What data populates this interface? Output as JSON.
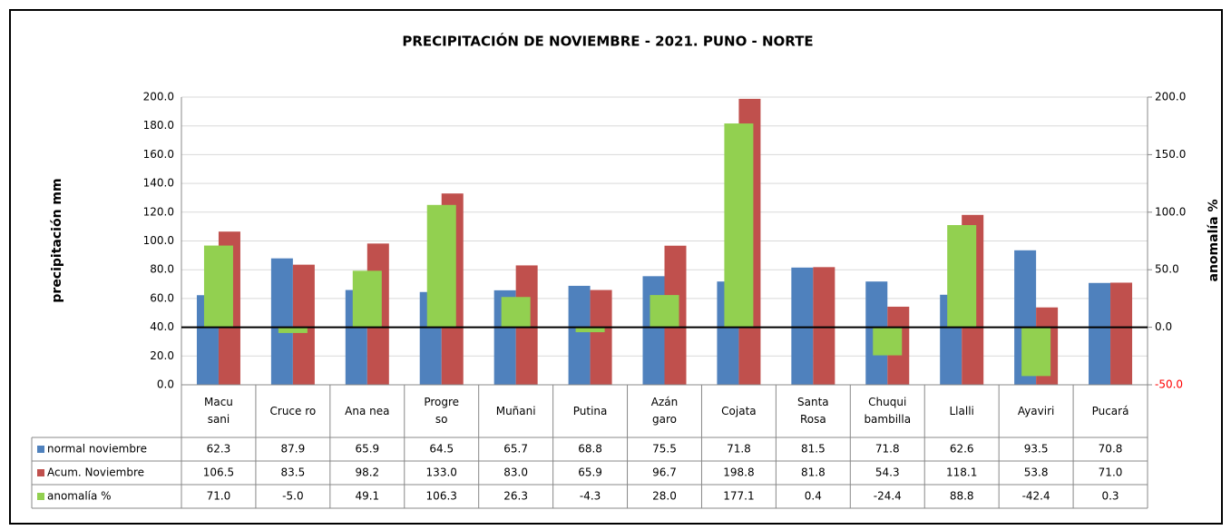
{
  "chart_data": {
    "type": "bar",
    "title": "PRECIPITACIÓN DE NOVIEMBRE - 2021. PUNO - NORTE",
    "ylabel": "precipitación mm",
    "y2label": "anomalía %",
    "categories": [
      "Macu\nsani",
      "Cruce ro",
      "Ana nea",
      "Progre\nso",
      "Muñani",
      "Putina",
      "Azán\ngaro",
      "Cojata",
      "Santa\nRosa",
      "Chuqui\nbambilla",
      "Llalli",
      "Ayaviri",
      "Pucará"
    ],
    "series": [
      {
        "name": "normal noviembre",
        "color": "#4f81bd",
        "axis": "y",
        "values": [
          62.3,
          87.9,
          65.9,
          64.5,
          65.7,
          68.8,
          75.5,
          71.8,
          81.5,
          71.8,
          62.6,
          93.5,
          70.8
        ],
        "value_labels": [
          "62.3",
          "87.9",
          "65.9",
          "64.5",
          "65.7",
          "68.8",
          "75.5",
          "71.8",
          "81.5",
          "71.8",
          "62.6",
          "93.5",
          "70.8"
        ]
      },
      {
        "name": "Acum. Noviembre",
        "color": "#c0504d",
        "axis": "y",
        "values": [
          106.5,
          83.5,
          98.2,
          133.0,
          83.0,
          65.9,
          96.7,
          198.8,
          81.8,
          54.3,
          118.1,
          53.8,
          71.0
        ],
        "value_labels": [
          "106.5",
          "83.5",
          "98.2",
          "133.0",
          "83.0",
          "65.9",
          "96.7",
          "198.8",
          "81.8",
          "54.3",
          "118.1",
          "53.8",
          "71.0"
        ]
      },
      {
        "name": "anomalía %",
        "color": "#92d050",
        "axis": "y2",
        "values": [
          71.0,
          -5.0,
          49.1,
          106.3,
          26.3,
          -4.3,
          28.0,
          177.1,
          0.4,
          -24.4,
          88.8,
          -42.4,
          0.3
        ],
        "value_labels": [
          "71.0",
          "-5.0",
          "49.1",
          "106.3",
          "26.3",
          "-4.3",
          "28.0",
          "177.1",
          "0.4",
          "-24.4",
          "88.8",
          "-42.4",
          "0.3"
        ]
      }
    ],
    "ylim": [
      0,
      200
    ],
    "yticks": [
      {
        "value": 0,
        "label": "0.0"
      },
      {
        "value": 20,
        "label": "20.0"
      },
      {
        "value": 40,
        "label": "40.0"
      },
      {
        "value": 60,
        "label": "60.0"
      },
      {
        "value": 80,
        "label": "80.0"
      },
      {
        "value": 100,
        "label": "100.0"
      },
      {
        "value": 120,
        "label": "120.0"
      },
      {
        "value": 140,
        "label": "140.0"
      },
      {
        "value": 160,
        "label": "160.0"
      },
      {
        "value": 180,
        "label": "180.0"
      },
      {
        "value": 200,
        "label": "200.0"
      }
    ],
    "y2lim": [
      -50,
      200
    ],
    "y2ticks": [
      {
        "value": -50,
        "label": "-50.0"
      },
      {
        "value": 0,
        "label": "0.0"
      },
      {
        "value": 50,
        "label": "50.0"
      },
      {
        "value": 100,
        "label": "100.0"
      },
      {
        "value": 150,
        "label": "150.0"
      },
      {
        "value": 200,
        "label": "200.0"
      }
    ],
    "negative_tick_color": "#ff0000",
    "grid": true,
    "data_table": true
  }
}
